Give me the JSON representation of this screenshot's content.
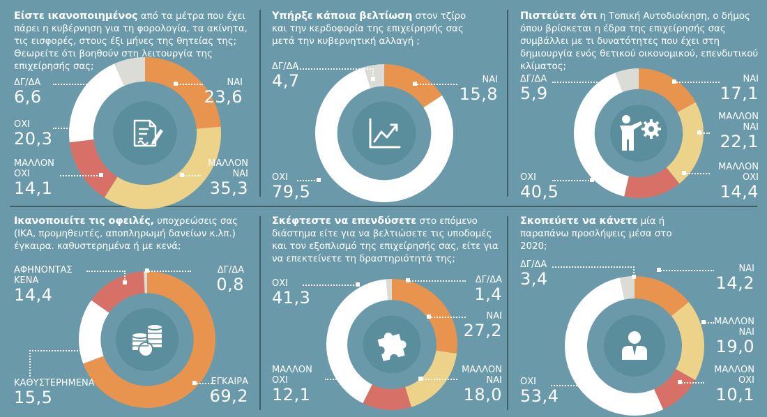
{
  "colors": {
    "background": "#6a9aaa",
    "center": "#5b8e9c",
    "ΝΑΙ": "#e8944f",
    "ΜΑΛΛΟΝ ΝΑΙ": "#edd28a",
    "ΜΑΛΛΟΝ ΟΧΙ": "#d77066",
    "ΟΧΙ": "#ffffff",
    "ΔΓ/ΔΑ": "#dcdcd6",
    "ΕΓΚΑΙΡΑ": "#e8944f",
    "ΚΑΘΥΣΤΕΡΗΜΕΝΑ": "#ffffff",
    "ΑΦΗΝΟΝΤΑΣ ΚΕΝΑ": "#d77066"
  },
  "chart_data": [
    {
      "type": "pie",
      "icon": "document-sign-icon",
      "question_bold": "Είστε ικανοποιημένος",
      "question_rest": " από τα μέτρα που έχει πάρει η κυβέρνηση για τη φορολογία, τα ακίνητα, τις εισφορές, στους έξι μήνες της θητείας της; Θεωρείτε ότι βοηθούν στη λειτουργία της επιχείρησής σας;",
      "slices": [
        {
          "label": "ΝΑΙ",
          "value": 23.6
        },
        {
          "label": "ΜΑΛΛΟΝ ΝΑΙ",
          "value": 35.3
        },
        {
          "label": "ΜΑΛΛΟΝ ΟΧΙ",
          "value": 14.1
        },
        {
          "label": "ΟΧΙ",
          "value": 20.3
        },
        {
          "label": "ΔΓ/ΔΑ",
          "value": 6.6
        }
      ],
      "labels": [
        {
          "name": "ΝΑΙ",
          "value": "23,6"
        },
        {
          "name": "ΜΑΛΛΟΝ ΝΑΙ",
          "value": "35,3"
        },
        {
          "name": "ΜΑΛΛΟΝ ΟΧΙ",
          "value": "14,1"
        },
        {
          "name": "ΟΧΙ",
          "value": "20,3"
        },
        {
          "name": "ΔΓ/ΔΑ",
          "value": "6,6"
        }
      ]
    },
    {
      "type": "pie",
      "icon": "rising-chart-icon",
      "question_bold": "Υπήρξε κάποια βελτίωση",
      "question_rest": " στον τζίρο και την κερδοφορία της επιχείρησής σας μετά την κυβερνητική αλλαγή ;",
      "slices": [
        {
          "label": "ΝΑΙ",
          "value": 15.8
        },
        {
          "label": "ΟΧΙ",
          "value": 79.5
        },
        {
          "label": "ΔΓ/ΔΑ",
          "value": 4.7
        }
      ],
      "labels": [
        {
          "name": "ΝΑΙ",
          "value": "15,8"
        },
        {
          "name": "ΟΧΙ",
          "value": "79,5"
        },
        {
          "name": "ΔΓ/ΔΑ",
          "value": "4,7"
        }
      ]
    },
    {
      "type": "pie",
      "icon": "presenter-gear-icon",
      "question_bold": "Πιστεύετε ότι",
      "question_rest": " η Τοπική Αυτοδιοίκηση, ο δήμος όπου βρίσκεται η έδρα της επιχείρησής σας συμβάλλει με τι δυνατότητες που έχει στη δημιουργία ενός θετικού οικονομικού, επενδυτικού κλίματος;",
      "slices": [
        {
          "label": "ΝΑΙ",
          "value": 17.1
        },
        {
          "label": "ΜΑΛΛΟΝ ΝΑΙ",
          "value": 22.1
        },
        {
          "label": "ΜΑΛΛΟΝ ΟΧΙ",
          "value": 14.4
        },
        {
          "label": "ΟΧΙ",
          "value": 40.5
        },
        {
          "label": "ΔΓ/ΔΑ",
          "value": 5.9
        }
      ],
      "labels": [
        {
          "name": "ΝΑΙ",
          "value": "17,1"
        },
        {
          "name": "ΜΑΛΛΟΝ ΝΑΙ",
          "value": "22,1"
        },
        {
          "name": "ΜΑΛΛΟΝ ΟΧΙ",
          "value": "14,4"
        },
        {
          "name": "ΟΧΙ",
          "value": "40,5"
        },
        {
          "name": "ΔΓ/ΔΑ",
          "value": "5,9"
        }
      ]
    },
    {
      "type": "pie",
      "icon": "coins-icon",
      "question_bold": "Ικανοποιείτε τις οφειλές,",
      "question_rest": " υποχρεώσεις σας (ΙΚΑ, προμηθευτές, αποπληρωμή δανείων κ.λπ.) έγκαιρα. καθυστερημένα ή με κενά;",
      "slices": [
        {
          "label": "ΕΓΚΑΙΡΑ",
          "value": 69.2
        },
        {
          "label": "ΚΑΘΥΣΤΕΡΗΜΕΝΑ",
          "value": 15.5
        },
        {
          "label": "ΑΦΗΝΟΝΤΑΣ ΚΕΝΑ",
          "value": 14.4
        },
        {
          "label": "ΔΓ/ΔΑ",
          "value": 0.8
        }
      ],
      "labels": [
        {
          "name": "ΕΓΚΑΙΡΑ",
          "value": "69,2"
        },
        {
          "name": "ΚΑΘΥΣΤΕΡΗΜΕΝΑ",
          "value": "15,5"
        },
        {
          "name": "ΑΦΗΝΟΝΤΑΣ ΚΕΝΑ",
          "value": "14,4"
        },
        {
          "name": "ΔΓ/ΔΑ",
          "value": "0,8"
        }
      ]
    },
    {
      "type": "pie",
      "icon": "puzzle-piece-icon",
      "question_bold": "Σκέφτεστε να επενδύσετε",
      "question_rest": " στο επόμενο διάστημα είτε για να βελτιώσετε τις υποδομές και τον εξοπλισμό της επιχείρησής σας, είτε για να επεκτείνετε τη δραστηριότητά της;",
      "slices": [
        {
          "label": "ΝΑΙ",
          "value": 27.2
        },
        {
          "label": "ΜΑΛΛΟΝ ΝΑΙ",
          "value": 18.0
        },
        {
          "label": "ΜΑΛΛΟΝ ΟΧΙ",
          "value": 12.1
        },
        {
          "label": "ΟΧΙ",
          "value": 41.3
        },
        {
          "label": "ΔΓ/ΔΑ",
          "value": 1.4
        }
      ],
      "labels": [
        {
          "name": "ΝΑΙ",
          "value": "27,2"
        },
        {
          "name": "ΜΑΛΛΟΝ ΝΑΙ",
          "value": "18,0"
        },
        {
          "name": "ΜΑΛΛΟΝ ΟΧΙ",
          "value": "12,1"
        },
        {
          "name": "ΟΧΙ",
          "value": "41,3"
        },
        {
          "name": "ΔΓ/ΔΑ",
          "value": "1,4"
        }
      ]
    },
    {
      "type": "pie",
      "icon": "businessman-icon",
      "question_bold": "Σκοπεύετε να κάνετε",
      "question_rest": " μία ή παραπάνω προσλήψεις μέσα στο 2020;",
      "slices": [
        {
          "label": "ΝΑΙ",
          "value": 14.2
        },
        {
          "label": "ΜΑΛΛΟΝ ΝΑΙ",
          "value": 19.0
        },
        {
          "label": "ΜΑΛΛΟΝ ΟΧΙ",
          "value": 10.1
        },
        {
          "label": "ΟΧΙ",
          "value": 53.4
        },
        {
          "label": "ΔΓ/ΔΑ",
          "value": 3.4
        }
      ],
      "labels": [
        {
          "name": "ΝΑΙ",
          "value": "14,2"
        },
        {
          "name": "ΜΑΛΛΟΝ ΝΑΙ",
          "value": "19,0"
        },
        {
          "name": "ΜΑΛΛΟΝ ΟΧΙ",
          "value": "10,1"
        },
        {
          "name": "ΟΧΙ",
          "value": "53,4"
        },
        {
          "name": "ΔΓ/ΔΑ",
          "value": "3,4"
        }
      ]
    }
  ]
}
